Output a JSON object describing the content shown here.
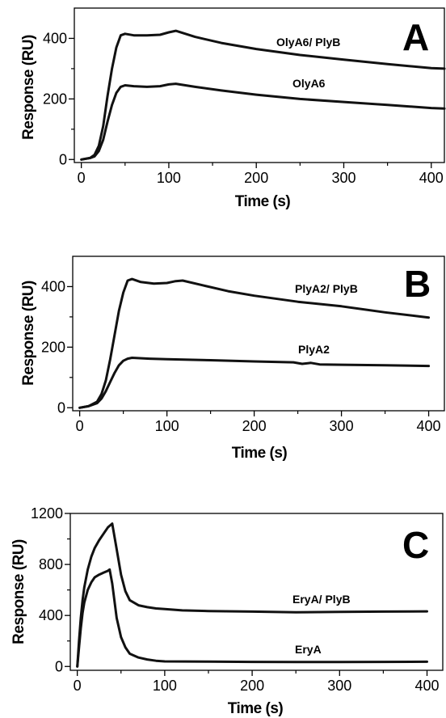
{
  "chart_data": [
    {
      "type": "line",
      "panel_label": "A",
      "xlabel": "Time (s)",
      "ylabel": "Response (RU)",
      "xlim": [
        -8,
        415
      ],
      "ylim": [
        -10,
        500
      ],
      "xticks": [
        0,
        100,
        200,
        300,
        400
      ],
      "yticks": [
        0,
        200,
        400
      ],
      "series": [
        {
          "name": "OlyA6/ PlyB",
          "x": [
            0,
            10,
            15,
            20,
            25,
            30,
            35,
            40,
            45,
            50,
            60,
            75,
            90,
            100,
            108,
            130,
            160,
            200,
            250,
            300,
            350,
            400,
            415
          ],
          "y": [
            0,
            5,
            15,
            45,
            110,
            210,
            300,
            370,
            410,
            415,
            410,
            410,
            412,
            420,
            425,
            405,
            385,
            365,
            345,
            330,
            315,
            302,
            300
          ]
        },
        {
          "name": "OlyA6",
          "x": [
            0,
            10,
            15,
            20,
            25,
            30,
            35,
            40,
            45,
            50,
            60,
            75,
            90,
            100,
            108,
            130,
            160,
            200,
            250,
            300,
            350,
            400,
            415
          ],
          "y": [
            0,
            5,
            10,
            28,
            65,
            125,
            180,
            220,
            240,
            245,
            242,
            240,
            242,
            248,
            250,
            240,
            228,
            214,
            200,
            190,
            180,
            170,
            168
          ]
        }
      ]
    },
    {
      "type": "line",
      "panel_label": "B",
      "xlabel": "Time (s)",
      "ylabel": "Response (RU)",
      "xlim": [
        -8,
        418
      ],
      "ylim": [
        -10,
        500
      ],
      "xticks": [
        0,
        100,
        200,
        300,
        400
      ],
      "yticks": [
        0,
        200,
        400
      ],
      "series": [
        {
          "name": "PlyA2/ PlyB",
          "x": [
            0,
            10,
            20,
            25,
            30,
            35,
            40,
            45,
            50,
            55,
            60,
            70,
            85,
            100,
            110,
            118,
            140,
            170,
            200,
            250,
            300,
            350,
            400
          ],
          "y": [
            0,
            5,
            20,
            45,
            90,
            160,
            240,
            320,
            380,
            420,
            425,
            415,
            410,
            412,
            418,
            420,
            405,
            385,
            370,
            350,
            335,
            315,
            298
          ]
        },
        {
          "name": "PlyA2",
          "x": [
            0,
            10,
            20,
            25,
            30,
            35,
            40,
            45,
            50,
            55,
            60,
            80,
            100,
            150,
            200,
            245,
            255,
            265,
            275,
            300,
            350,
            400
          ],
          "y": [
            0,
            5,
            15,
            30,
            55,
            85,
            115,
            140,
            155,
            162,
            165,
            162,
            160,
            157,
            153,
            150,
            145,
            148,
            143,
            142,
            140,
            138
          ]
        }
      ]
    },
    {
      "type": "line",
      "panel_label": "C",
      "xlabel": "Time (s)",
      "ylabel": "Response (RU)",
      "xlim": [
        -8,
        418
      ],
      "ylim": [
        -30,
        1200
      ],
      "xticks": [
        0,
        100,
        200,
        300,
        400
      ],
      "yticks": [
        0,
        400,
        800,
        1200
      ],
      "series": [
        {
          "name": "EryA/ PlyB",
          "x": [
            0,
            2,
            4,
            6,
            8,
            12,
            16,
            20,
            25,
            30,
            35,
            40,
            45,
            50,
            55,
            60,
            70,
            80,
            90,
            100,
            120,
            150,
            200,
            250,
            300,
            350,
            400
          ],
          "y": [
            0,
            200,
            380,
            520,
            620,
            760,
            860,
            930,
            990,
            1040,
            1090,
            1120,
            920,
            720,
            590,
            520,
            480,
            465,
            455,
            450,
            440,
            435,
            430,
            425,
            428,
            430,
            432
          ]
        },
        {
          "name": "EryA",
          "x": [
            0,
            2,
            4,
            6,
            8,
            12,
            16,
            20,
            25,
            30,
            35,
            37,
            40,
            45,
            50,
            55,
            60,
            70,
            80,
            90,
            100,
            150,
            200,
            250,
            300,
            350,
            400
          ],
          "y": [
            0,
            150,
            300,
            420,
            500,
            600,
            660,
            700,
            720,
            735,
            750,
            760,
            650,
            380,
            230,
            150,
            100,
            70,
            55,
            45,
            40,
            38,
            36,
            35,
            35,
            36,
            37
          ]
        }
      ]
    }
  ]
}
